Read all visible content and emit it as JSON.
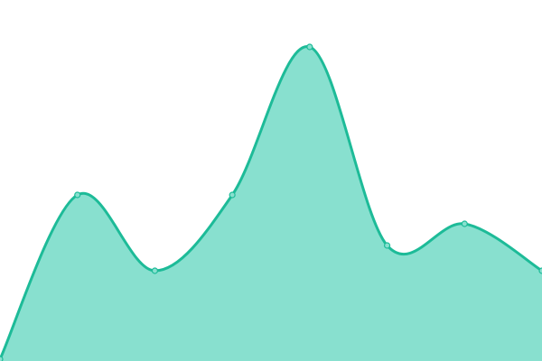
{
  "chart_data": {
    "type": "area",
    "x": [
      0,
      1,
      2,
      3,
      4,
      5,
      6,
      7
    ],
    "values": [
      0.5,
      46,
      25,
      46,
      87,
      32,
      38,
      25
    ],
    "ylim": [
      0,
      100
    ],
    "xlim": [
      0,
      7
    ],
    "grid": false,
    "axes_visible": false,
    "smooth": true,
    "markers": true,
    "colors": {
      "fill": "#88e0cf",
      "line": "#1dbb98",
      "marker_fill": "#88e0cf",
      "marker_stroke": "#1dbb98"
    }
  }
}
